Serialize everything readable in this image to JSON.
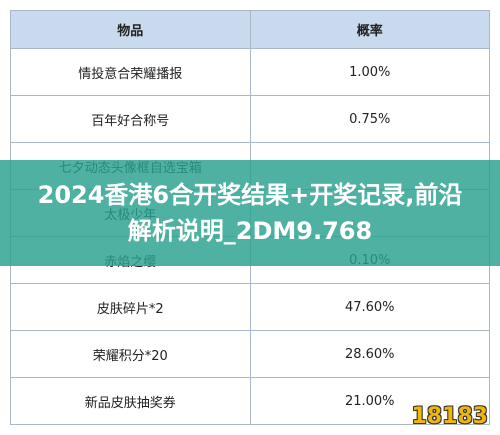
{
  "header": {
    "columns": [
      "物品",
      "概率"
    ]
  },
  "table": {
    "rows": [
      [
        "情投意合荣耀播报",
        "1.00%"
      ],
      [
        "百年好合称号",
        "0.75%"
      ],
      [
        "七夕动态头像框自选宝箱"
      ],
      [
        "太极少年"
      ],
      [
        "赤焰之缨",
        "0.10%"
      ],
      [
        "皮肤碎片*2",
        "47.60%"
      ],
      [
        "荣耀积分*20",
        "28.60%"
      ],
      [
        "新品皮肤抽奖券",
        "21.00%"
      ]
    ]
  },
  "banner": {
    "text": "2024香港6合开奖结果+开奖记录,前沿解析说明_2DM9.768"
  },
  "logo": {
    "text": "18183"
  }
}
